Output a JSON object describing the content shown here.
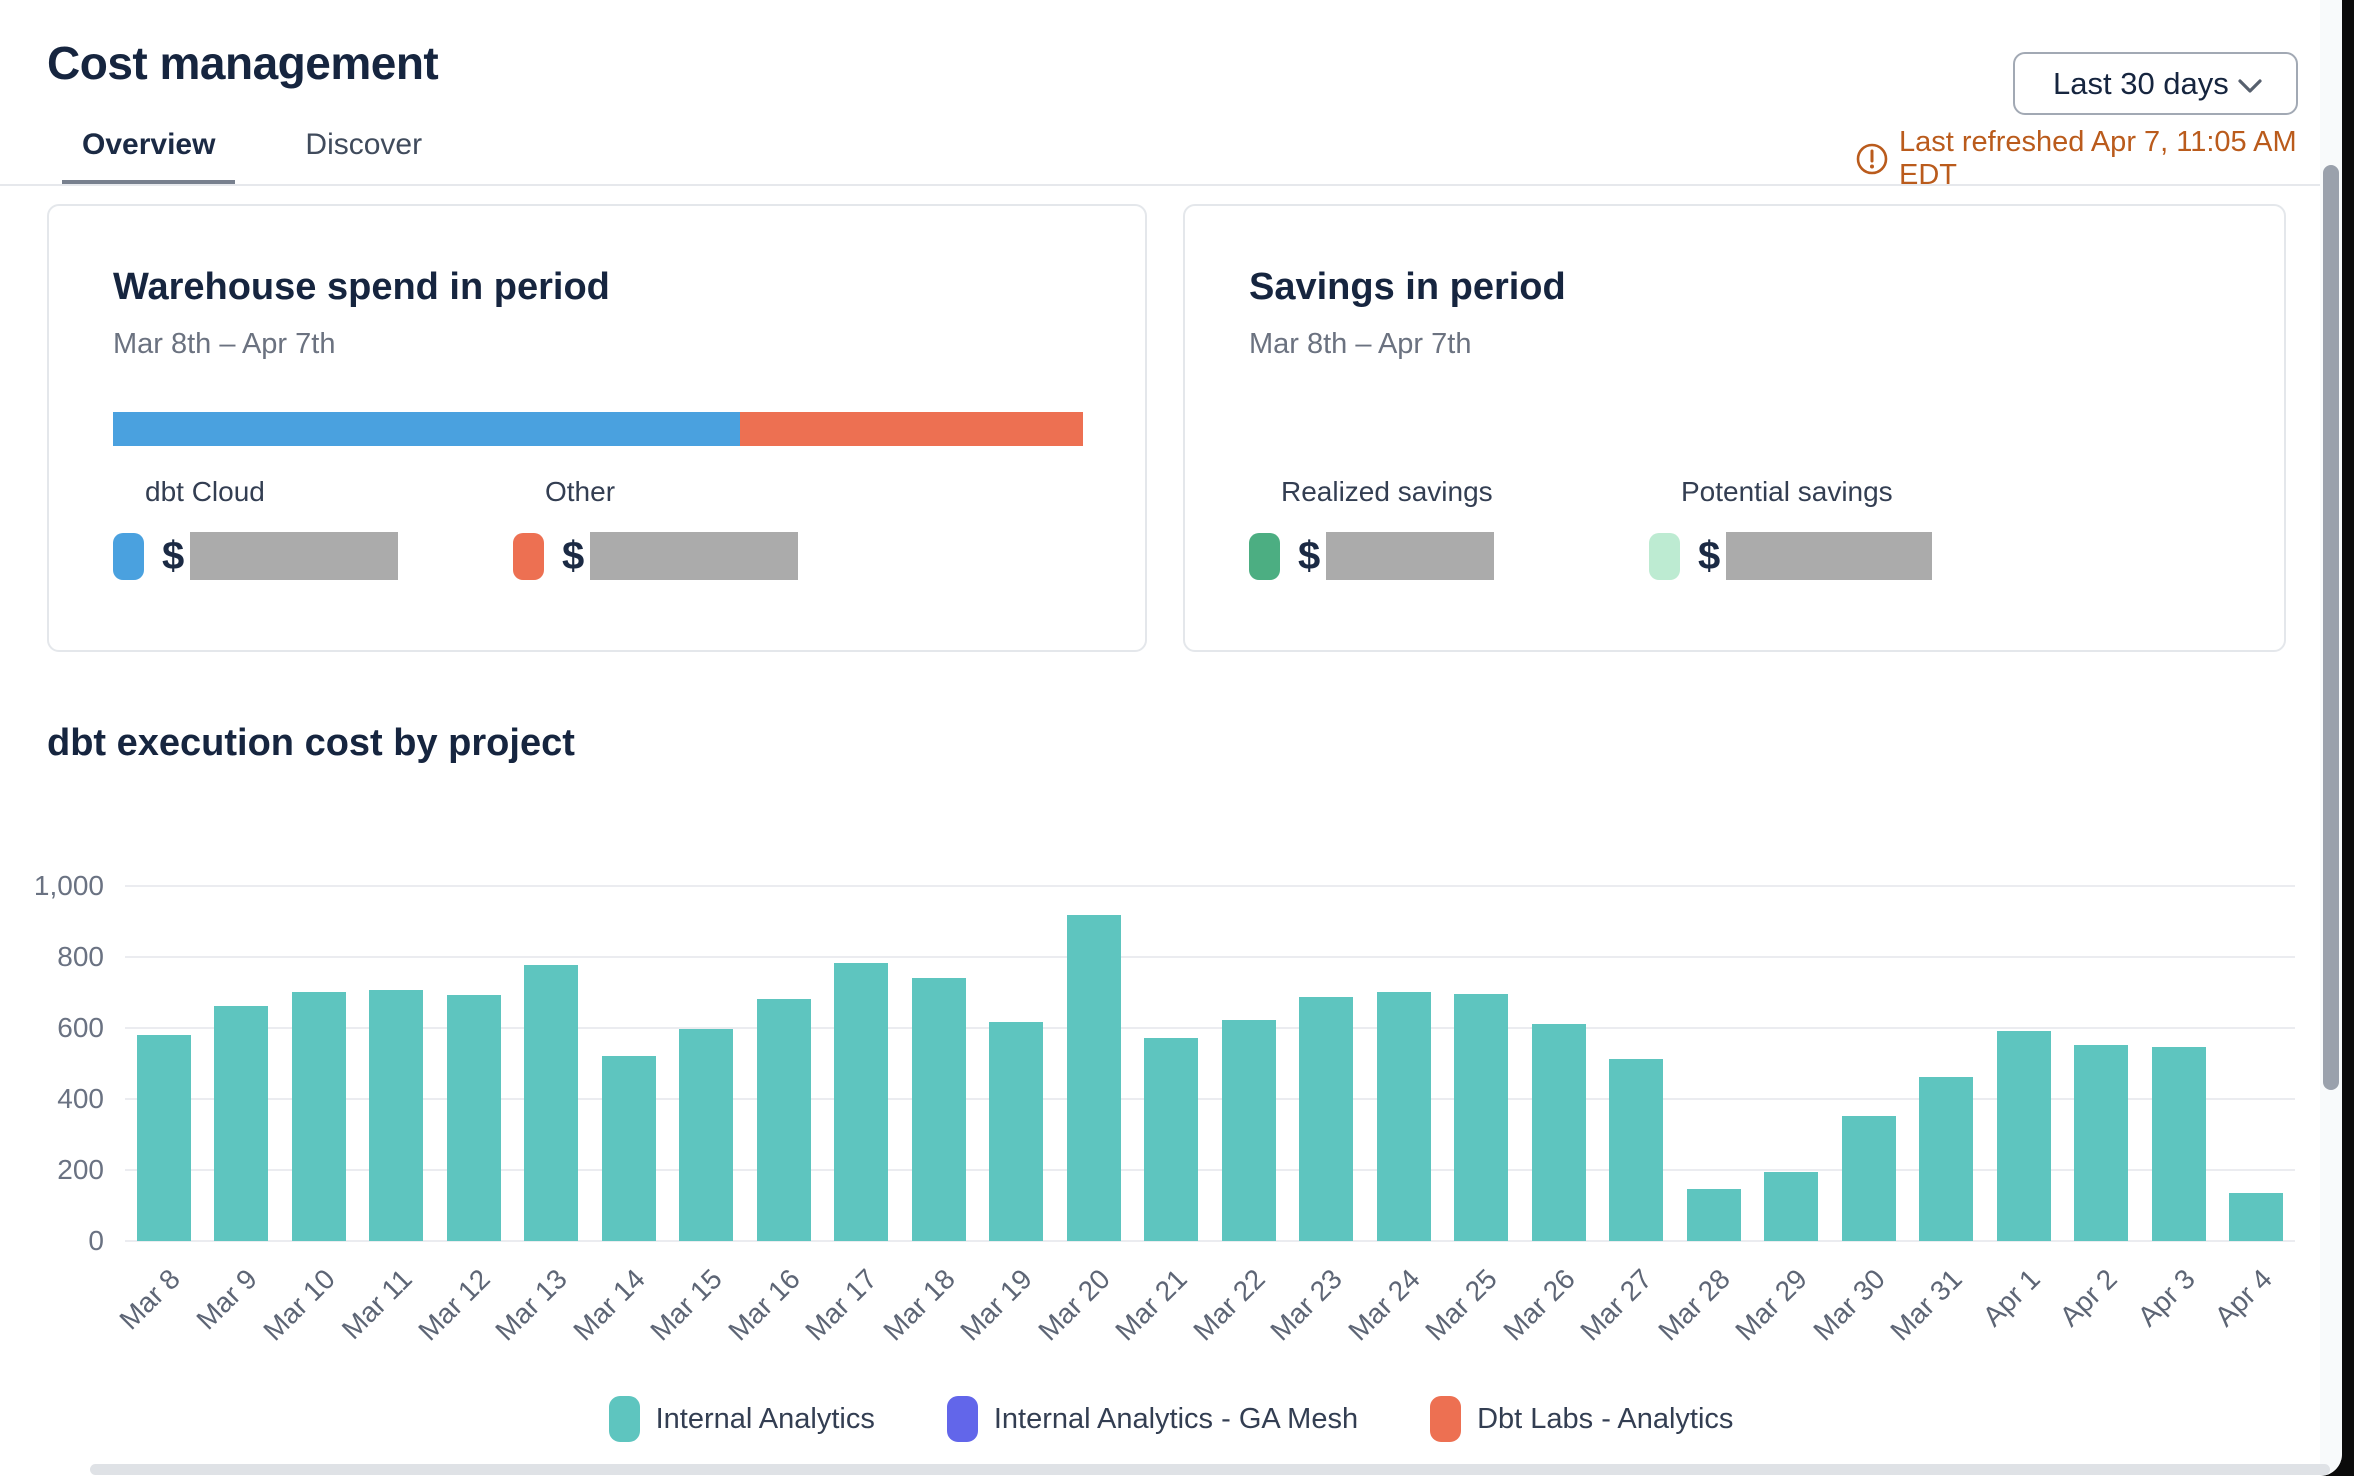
{
  "header": {
    "title": "Cost management",
    "tabs": [
      {
        "label": "Overview",
        "active": true
      },
      {
        "label": "Discover",
        "active": false
      }
    ],
    "range_selector": {
      "value": "Last 30 days"
    },
    "last_refreshed": "Last refreshed Apr 7, 11:05 AM EDT",
    "refresh_color": "#BA5B1C"
  },
  "cards": {
    "warehouse": {
      "title": "Warehouse spend in period",
      "period": "Mar 8th – Apr 7th",
      "stacked_bar": {
        "segments": [
          {
            "name": "dbt Cloud",
            "color": "#4AA1DF",
            "percent": 64.6
          },
          {
            "name": "Other",
            "color": "#ED7052",
            "percent": 35.4
          }
        ]
      },
      "metrics": [
        {
          "label": "dbt Cloud",
          "swatch_color": "#4AA1DF",
          "currency": "$",
          "value_redacted": true,
          "redact_width": 208
        },
        {
          "label": "Other",
          "swatch_color": "#ED7052",
          "currency": "$",
          "value_redacted": true,
          "redact_width": 208
        }
      ]
    },
    "savings": {
      "title": "Savings in period",
      "period": "Mar 8th – Apr 7th",
      "metrics": [
        {
          "label": "Realized savings",
          "swatch_color": "#4CAE82",
          "currency": "$",
          "value_redacted": true,
          "redact_width": 168
        },
        {
          "label": "Potential savings",
          "swatch_color": "#BDEBD2",
          "currency": "$",
          "value_redacted": true,
          "redact_width": 206
        }
      ]
    }
  },
  "chart_data": {
    "type": "bar",
    "title": "dbt execution cost by project",
    "categories": [
      "Mar 8",
      "Mar 9",
      "Mar 10",
      "Mar 11",
      "Mar 12",
      "Mar 13",
      "Mar 14",
      "Mar 15",
      "Mar 16",
      "Mar 17",
      "Mar 18",
      "Mar 19",
      "Mar 20",
      "Mar 21",
      "Mar 22",
      "Mar 23",
      "Mar 24",
      "Mar 25",
      "Mar 26",
      "Mar 27",
      "Mar 28",
      "Mar 29",
      "Mar 30",
      "Mar 31",
      "Apr 1",
      "Apr 2",
      "Apr 3",
      "Apr 4"
    ],
    "series": [
      {
        "name": "Internal Analytics",
        "color": "#5EC5BF",
        "values": [
          580,
          660,
          700,
          705,
          690,
          775,
          520,
          595,
          680,
          780,
          740,
          615,
          915,
          570,
          620,
          685,
          700,
          695,
          610,
          510,
          145,
          195,
          350,
          460,
          590,
          550,
          545,
          135
        ]
      }
    ],
    "legend": [
      {
        "label": "Internal Analytics",
        "color": "#5EC5BF"
      },
      {
        "label": "Internal Analytics - GA Mesh",
        "color": "#6266EA"
      },
      {
        "label": "Dbt Labs - Analytics",
        "color": "#ED7052"
      }
    ],
    "xlabel": "",
    "ylabel": "",
    "ylim": [
      0,
      1000
    ],
    "yticks": [
      0,
      200,
      400,
      600,
      800,
      1000
    ],
    "grid": true,
    "legend_position": "bottom"
  }
}
